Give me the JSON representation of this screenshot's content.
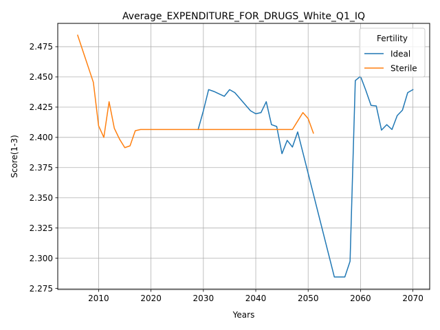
{
  "chart_data": {
    "type": "line",
    "title": "Average_EXPENDITURE_FOR_DRUGS_White_Q1_IQ",
    "xlabel": "Years",
    "ylabel": "Score(1-3)",
    "xlim": [
      2002.2,
      2073.2
    ],
    "ylim": [
      2.2742,
      2.4943
    ],
    "xticks": [
      2010,
      2020,
      2030,
      2040,
      2050,
      2060,
      2070
    ],
    "xtick_labels": [
      "2010",
      "2020",
      "2030",
      "2040",
      "2050",
      "2060",
      "2070"
    ],
    "yticks": [
      2.275,
      2.3,
      2.325,
      2.35,
      2.375,
      2.4,
      2.425,
      2.45,
      2.475
    ],
    "ytick_labels": [
      "2.275",
      "2.300",
      "2.325",
      "2.350",
      "2.375",
      "2.400",
      "2.425",
      "2.450",
      "2.475"
    ],
    "grid": true,
    "legend": {
      "title": "Fertility",
      "position": "top-right"
    },
    "series": [
      {
        "name": "Ideal",
        "color": "#1f77b4",
        "x": [
          2029,
          2030,
          2031,
          2032,
          2033,
          2034,
          2035,
          2036,
          2037,
          2038,
          2039,
          2040,
          2041,
          2042,
          2043,
          2044,
          2045,
          2046,
          2047,
          2048,
          2055,
          2056,
          2057,
          2058,
          2059,
          2060,
          2061,
          2062,
          2063,
          2064,
          2065,
          2066,
          2067,
          2068,
          2069,
          2070
        ],
        "values": [
          2.4065,
          2.422,
          2.4395,
          2.438,
          2.436,
          2.434,
          2.4395,
          2.437,
          2.432,
          2.427,
          2.422,
          2.4195,
          2.4205,
          2.4295,
          2.4105,
          2.409,
          2.3865,
          2.3975,
          2.392,
          2.4045,
          2.2845,
          2.2845,
          2.2845,
          2.2975,
          2.447,
          2.4505,
          2.439,
          2.4265,
          2.426,
          2.406,
          2.4105,
          2.4065,
          2.418,
          2.4225,
          2.437,
          2.4395
        ]
      },
      {
        "name": "Sterile",
        "color": "#ff7f0e",
        "x": [
          2006,
          2007,
          2008,
          2009,
          2010,
          2011,
          2012,
          2013,
          2014,
          2015,
          2016,
          2017,
          2018,
          2019,
          2020,
          2021,
          2022,
          2023,
          2024,
          2025,
          2026,
          2027,
          2028,
          2029,
          2030,
          2031,
          2032,
          2033,
          2034,
          2035,
          2036,
          2037,
          2038,
          2039,
          2040,
          2041,
          2042,
          2043,
          2044,
          2045,
          2046,
          2047,
          2048,
          2049,
          2050,
          2051
        ],
        "values": [
          2.4845,
          2.4715,
          2.4585,
          2.4455,
          2.4095,
          2.4,
          2.4295,
          2.4075,
          2.3985,
          2.3915,
          2.393,
          2.4055,
          2.4065,
          2.4065,
          2.4065,
          2.4065,
          2.4065,
          2.4065,
          2.4065,
          2.4065,
          2.4065,
          2.4065,
          2.4065,
          2.4065,
          2.4065,
          2.4065,
          2.4065,
          2.4065,
          2.4065,
          2.4065,
          2.4065,
          2.4065,
          2.4065,
          2.4065,
          2.4065,
          2.4065,
          2.4065,
          2.4065,
          2.4065,
          2.4065,
          2.4065,
          2.4065,
          2.4135,
          2.4205,
          2.4155,
          2.4035
        ]
      }
    ]
  }
}
